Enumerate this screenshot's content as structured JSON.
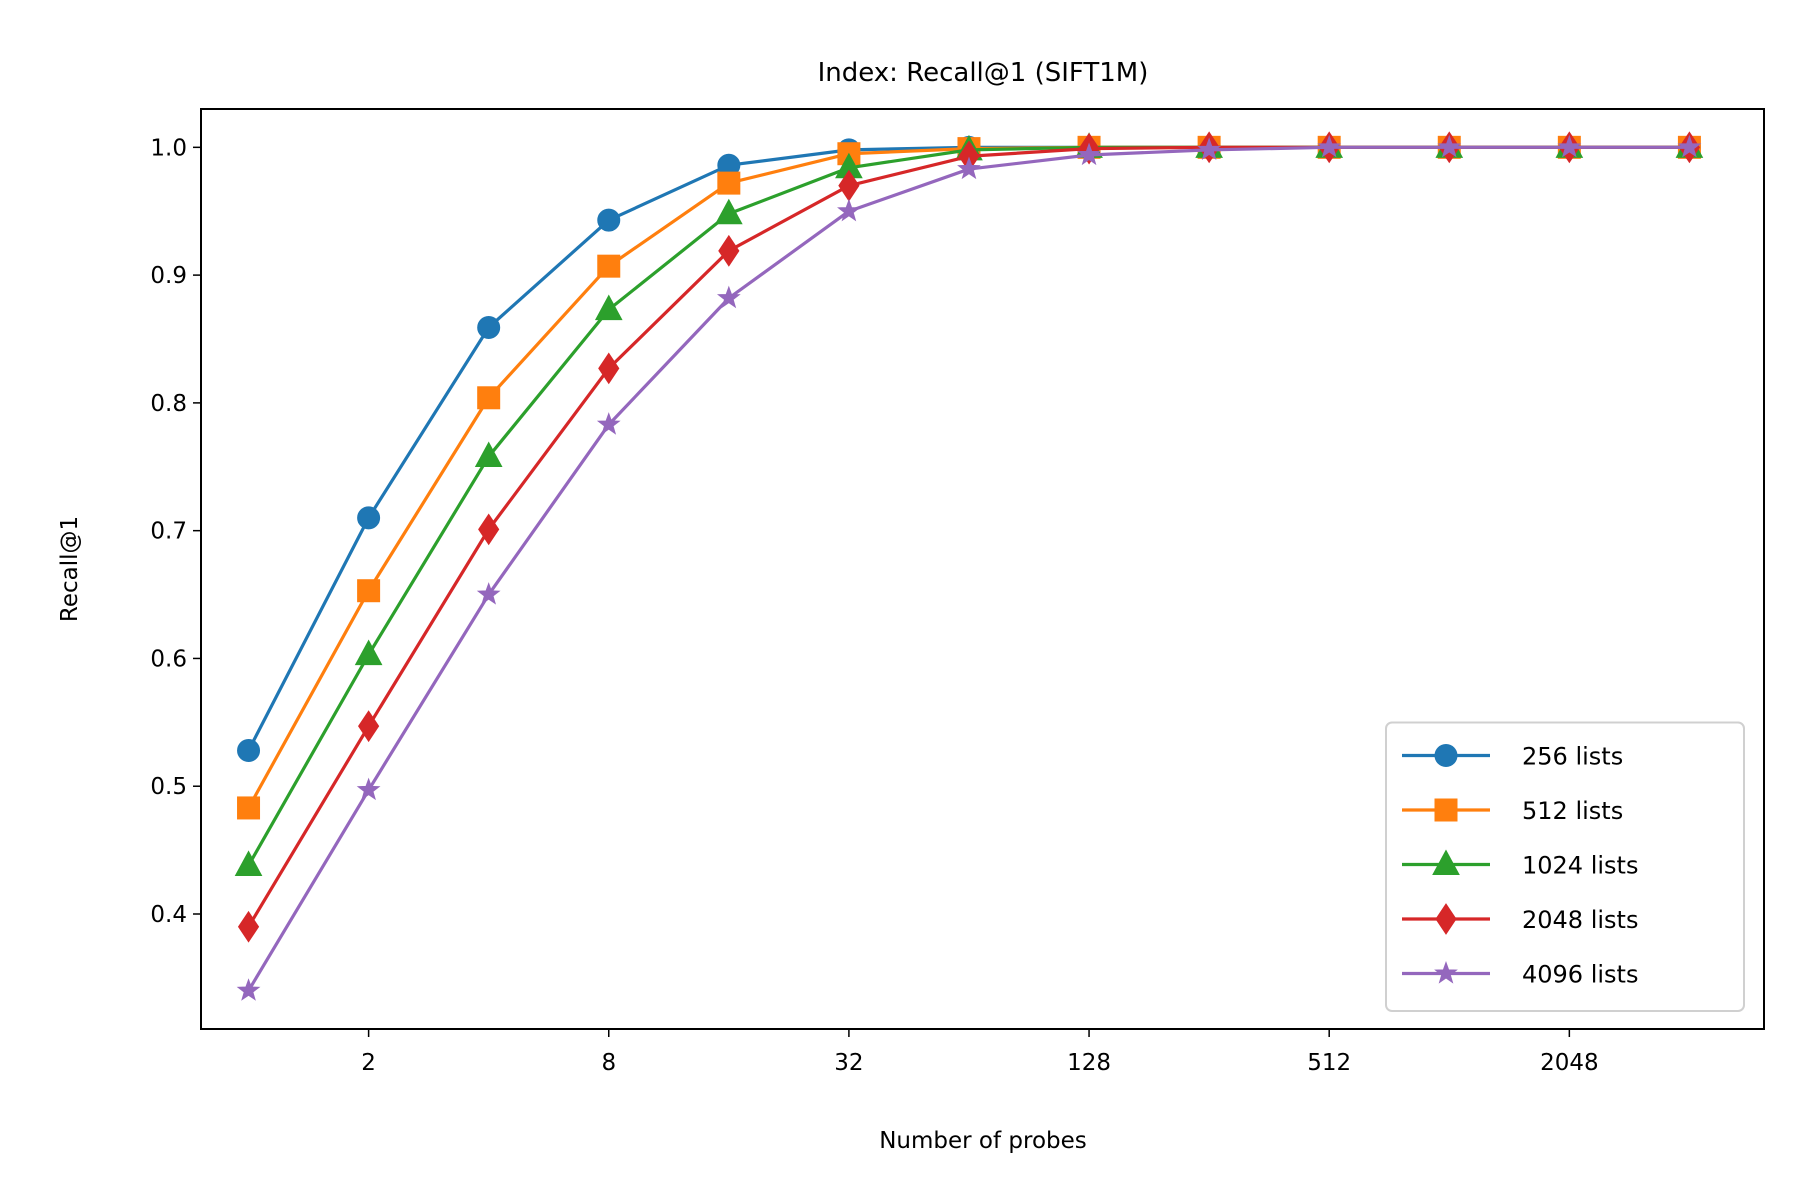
{
  "chart_data": {
    "type": "line",
    "title": "Index: Recall@1 (SIFT1M)",
    "xlabel": "Number of probes",
    "ylabel": "Recall@1",
    "x_scale": "log2",
    "x": [
      1,
      2,
      4,
      8,
      16,
      32,
      64,
      128,
      256,
      512,
      1024,
      2048,
      4096
    ],
    "xlim": [
      0.76,
      6300
    ],
    "ylim": [
      0.31,
      1.03
    ],
    "xticks": [
      2,
      8,
      32,
      128,
      512,
      2048
    ],
    "xtick_labels": [
      "2",
      "8",
      "32",
      "128",
      "512",
      "2048"
    ],
    "yticks": [
      0.4,
      0.5,
      0.6,
      0.7,
      0.8,
      0.9,
      1.0
    ],
    "ytick_labels": [
      "0.4",
      "0.5",
      "0.6",
      "0.7",
      "0.8",
      "0.9",
      "1.0"
    ],
    "grid": false,
    "legend_position": "lower-right",
    "series": [
      {
        "name": "256 lists",
        "color": "#1f77b4",
        "marker": "circle",
        "values": [
          0.528,
          0.71,
          0.859,
          0.943,
          0.986,
          0.998,
          1.0,
          1.0,
          1.0,
          1.0,
          1.0,
          1.0,
          1.0
        ]
      },
      {
        "name": "512 lists",
        "color": "#ff7f0e",
        "marker": "square",
        "values": [
          0.483,
          0.653,
          0.804,
          0.907,
          0.972,
          0.995,
          0.999,
          1.0,
          1.0,
          1.0,
          1.0,
          1.0,
          1.0
        ]
      },
      {
        "name": "1024 lists",
        "color": "#2ca02c",
        "marker": "triangle",
        "values": [
          0.438,
          0.603,
          0.758,
          0.873,
          0.948,
          0.984,
          0.998,
          1.0,
          1.0,
          1.0,
          1.0,
          1.0,
          1.0
        ]
      },
      {
        "name": "2048 lists",
        "color": "#d62728",
        "marker": "diamond",
        "values": [
          0.39,
          0.547,
          0.701,
          0.827,
          0.919,
          0.97,
          0.993,
          0.999,
          1.0,
          1.0,
          1.0,
          1.0,
          1.0
        ]
      },
      {
        "name": "4096 lists",
        "color": "#9467bd",
        "marker": "star",
        "values": [
          0.34,
          0.497,
          0.65,
          0.783,
          0.882,
          0.95,
          0.983,
          0.994,
          0.998,
          1.0,
          1.0,
          1.0,
          1.0
        ]
      }
    ]
  }
}
